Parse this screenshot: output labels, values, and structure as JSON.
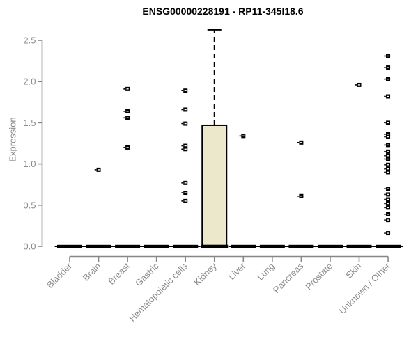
{
  "chart_data": {
    "type": "boxplot",
    "title": "ENSG00000228191 - RP11-345I18.6",
    "xlabel": "",
    "ylabel": "Expression",
    "ylim": [
      0,
      2.5
    ],
    "yticks": [
      0.0,
      0.5,
      1.0,
      1.5,
      2.0,
      2.5
    ],
    "grid": false,
    "legend": null,
    "axis_color": "#878787",
    "label_color": "#8a8a8a",
    "box_fill_color": "#ece8cb",
    "box_line_color": "#000000",
    "categories": [
      "Bladder",
      "Brain",
      "Breast",
      "Gastric",
      "Hematopoietic cells",
      "Kidney",
      "Liver",
      "Lung",
      "Pancreas",
      "Prostate",
      "Skin",
      "Unknown / Other"
    ],
    "boxes": [
      {
        "category": "Bladder",
        "q1": 0,
        "median": 0,
        "q3": 0,
        "whisker_low": 0,
        "whisker_high": 0,
        "outliers": []
      },
      {
        "category": "Brain",
        "q1": 0,
        "median": 0,
        "q3": 0,
        "whisker_low": 0,
        "whisker_high": 0,
        "outliers": [
          0.93
        ]
      },
      {
        "category": "Breast",
        "q1": 0,
        "median": 0,
        "q3": 0,
        "whisker_low": 0,
        "whisker_high": 0,
        "outliers": [
          1.91,
          1.64,
          1.56,
          1.2
        ]
      },
      {
        "category": "Gastric",
        "q1": 0,
        "median": 0,
        "q3": 0,
        "whisker_low": 0,
        "whisker_high": 0,
        "outliers": []
      },
      {
        "category": "Hematopoietic cells",
        "q1": 0,
        "median": 0,
        "q3": 0,
        "whisker_low": 0,
        "whisker_high": 0,
        "outliers": [
          1.89,
          1.66,
          1.49,
          1.22,
          1.18,
          0.77,
          0.65,
          0.55
        ]
      },
      {
        "category": "Kidney",
        "q1": 0,
        "median": 0,
        "q3": 1.47,
        "whisker_low": 0,
        "whisker_high": 2.63,
        "outliers": []
      },
      {
        "category": "Liver",
        "q1": 0,
        "median": 0,
        "q3": 0,
        "whisker_low": 0,
        "whisker_high": 0,
        "outliers": [
          1.34
        ]
      },
      {
        "category": "Lung",
        "q1": 0,
        "median": 0,
        "q3": 0,
        "whisker_low": 0,
        "whisker_high": 0,
        "outliers": []
      },
      {
        "category": "Pancreas",
        "q1": 0,
        "median": 0,
        "q3": 0,
        "whisker_low": 0,
        "whisker_high": 0,
        "outliers": [
          1.26,
          0.61
        ]
      },
      {
        "category": "Prostate",
        "q1": 0,
        "median": 0,
        "q3": 0,
        "whisker_low": 0,
        "whisker_high": 0,
        "outliers": []
      },
      {
        "category": "Skin",
        "q1": 0,
        "median": 0,
        "q3": 0,
        "whisker_low": 0,
        "whisker_high": 0,
        "outliers": [
          1.96
        ]
      },
      {
        "category": "Unknown / Other",
        "q1": 0,
        "median": 0,
        "q3": 0,
        "whisker_low": 0,
        "whisker_high": 0,
        "outliers": [
          2.31,
          2.17,
          2.03,
          1.82,
          1.5,
          1.36,
          1.33,
          1.23,
          1.15,
          1.1,
          1.06,
          0.99,
          0.94,
          0.9,
          0.7,
          0.63,
          0.57,
          0.52,
          0.47,
          0.39,
          0.32,
          0.16
        ]
      }
    ]
  }
}
